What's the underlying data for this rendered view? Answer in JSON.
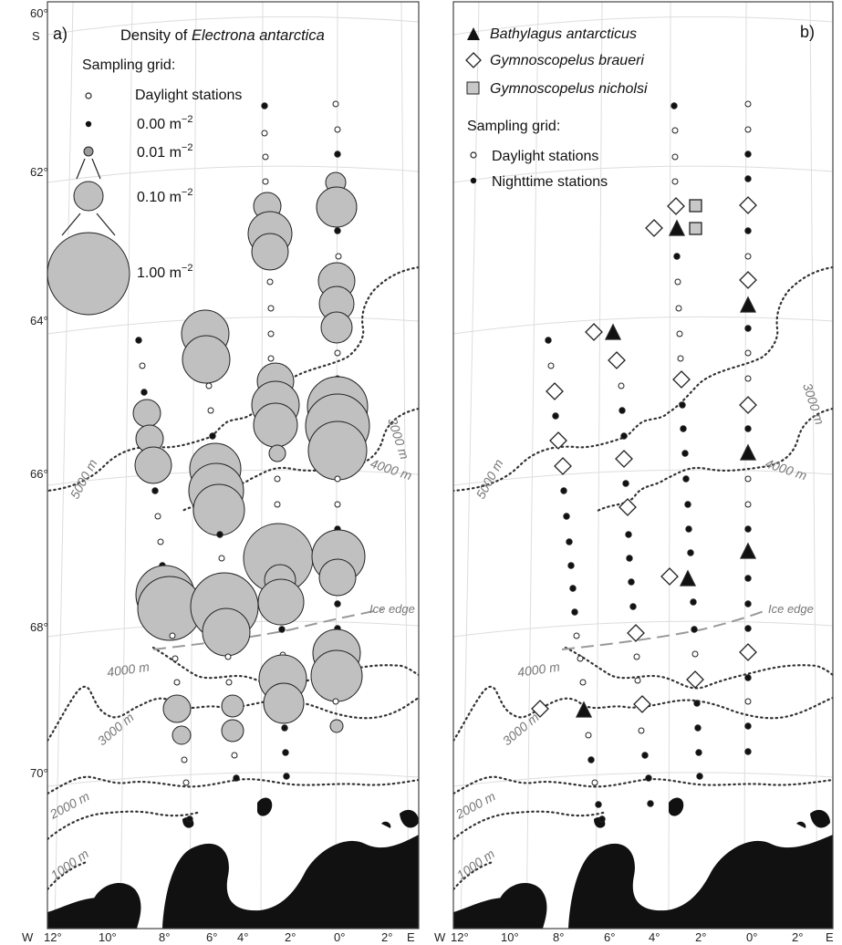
{
  "axes": {
    "lat_top": "60°",
    "lat_top_hemi": "S",
    "lat_labels": [
      "62°",
      "64°",
      "66°",
      "68°",
      "70°"
    ],
    "lon_west": "W",
    "lon_east": "E",
    "lon_labels": [
      "12°",
      "10°",
      "8°",
      "6°",
      "4°",
      "2°",
      "0°",
      "2°"
    ]
  },
  "panel_a": {
    "panel_label": "a)",
    "title_prefix": "Density of ",
    "title_species": "Electrona antarctica",
    "legend": {
      "grid_heading": "Sampling grid:",
      "daylight": "Daylight stations",
      "density_levels": [
        {
          "value": 0.0,
          "label": "0.00 m",
          "unit_exp": "−2"
        },
        {
          "value": 0.01,
          "label": "0.01 m",
          "unit_exp": "−2"
        },
        {
          "value": 0.1,
          "label": "0.10 m",
          "unit_exp": "−2"
        },
        {
          "value": 1.0,
          "label": "1.00 m",
          "unit_exp": "−2"
        }
      ]
    },
    "isobaths": [
      "3000 m",
      "4000 m",
      "5000 m",
      "4000 m",
      "3000 m",
      "2000 m",
      "1000 m"
    ],
    "ice_edge": "Ice edge"
  },
  "panel_b": {
    "panel_label": "b)",
    "species": [
      {
        "name": "Bathylagus antarcticus",
        "symbol": "filled-triangle"
      },
      {
        "name": "Gymnoscopelus braueri",
        "symbol": "open-diamond"
      },
      {
        "name": "Gymnoscopelus nicholsi",
        "symbol": "grey-square"
      }
    ],
    "legend": {
      "grid_heading": "Sampling grid:",
      "daylight": "Daylight stations",
      "night": "Nighttime stations"
    },
    "isobaths": [
      "3000 m",
      "4000 m",
      "5000 m",
      "4000 m",
      "3000 m",
      "2000 m",
      "1000 m"
    ],
    "ice_edge": "Ice edge"
  },
  "colors": {
    "bubble_fill": "#c0c0c0",
    "land": "#111111",
    "isobath": "#333333",
    "ice_edge": "#999999",
    "graticule": "#dddddd"
  }
}
